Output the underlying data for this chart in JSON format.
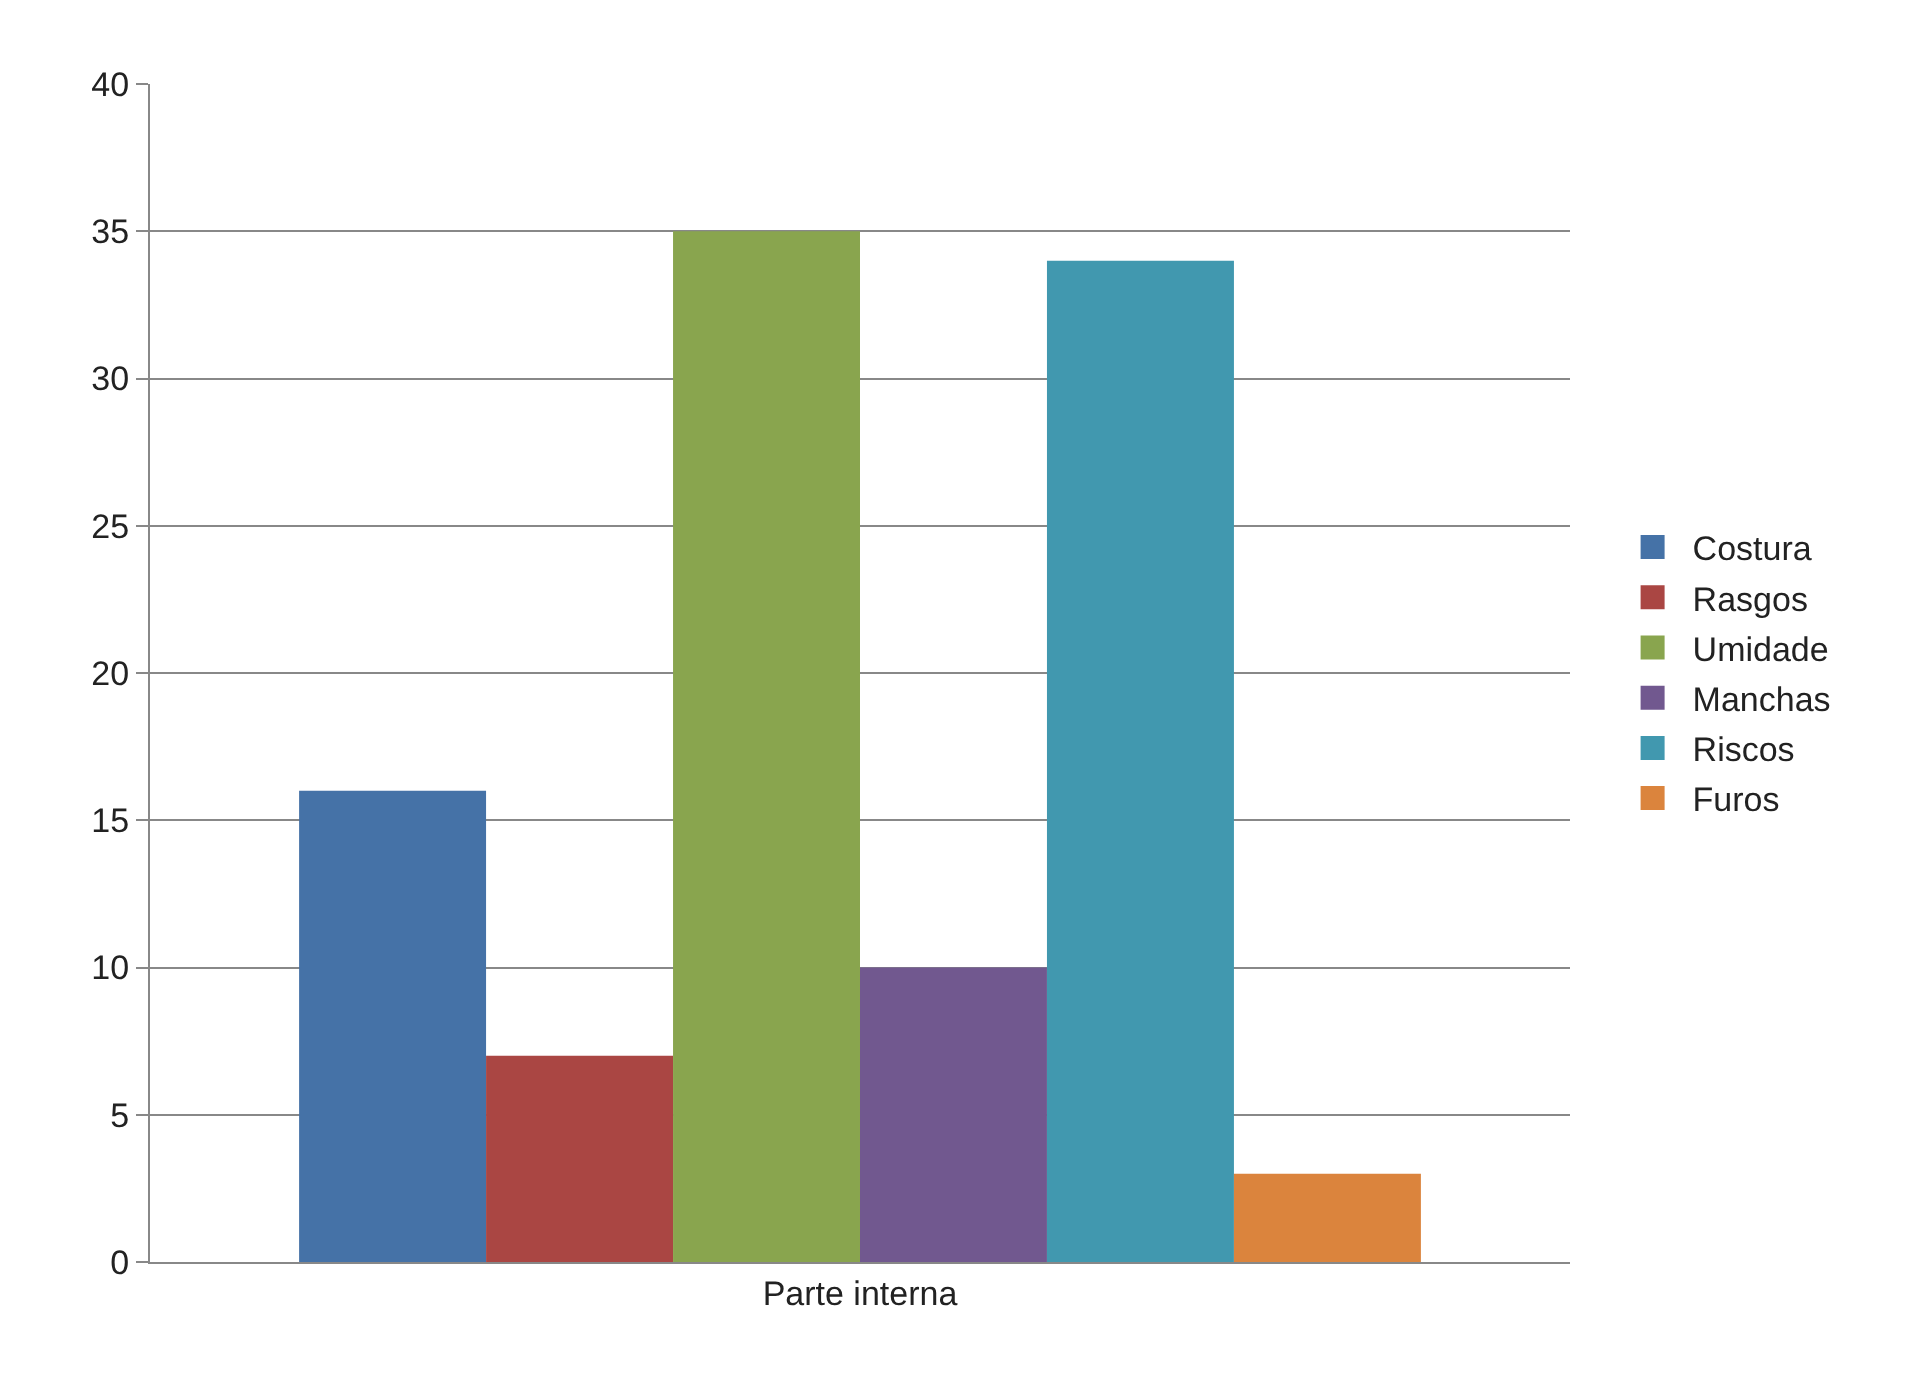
{
  "chart_data": {
    "type": "bar",
    "categories": [
      "Parte interna"
    ],
    "series": [
      {
        "name": "Costura",
        "color": "#4572a7",
        "values": [
          16
        ]
      },
      {
        "name": "Rasgos",
        "color": "#aa4643",
        "values": [
          7
        ]
      },
      {
        "name": "Umidade",
        "color": "#89a54e",
        "values": [
          35
        ]
      },
      {
        "name": "Manchas",
        "color": "#71588f",
        "values": [
          10
        ]
      },
      {
        "name": "Riscos",
        "color": "#4198af",
        "values": [
          34
        ]
      },
      {
        "name": "Furos",
        "color": "#db843d",
        "values": [
          3
        ]
      }
    ],
    "ylim": [
      0,
      40
    ],
    "yticks": [
      0,
      5,
      10,
      15,
      20,
      25,
      30,
      35,
      40
    ],
    "grid": "y",
    "legend": "right"
  }
}
